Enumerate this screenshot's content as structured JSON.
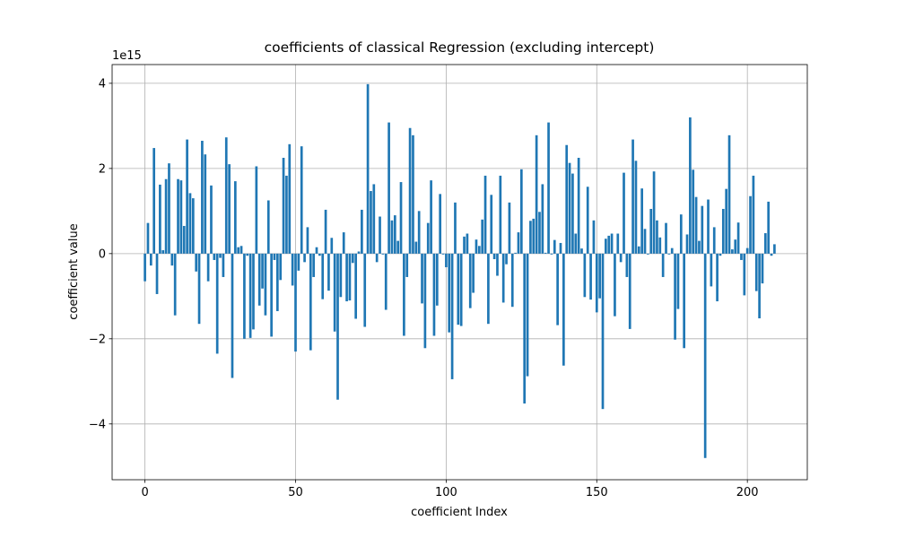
{
  "chart_data": {
    "type": "bar",
    "title": "coefficients of classical Regression (excluding intercept)",
    "x_label": "coefficient Index",
    "y_label": "coefficient value",
    "y_offset_label": "1e15",
    "color": "#1f77b4",
    "grid": true,
    "xlim": [
      -10.9,
      219.9
    ],
    "ylim": [
      -5.31,
      4.44
    ],
    "xticks": [
      0,
      50,
      100,
      150,
      200
    ],
    "yticks": [
      {
        "value": -4,
        "label": "−4"
      },
      {
        "value": -2,
        "label": "−2"
      },
      0,
      2,
      4
    ],
    "x": [
      0,
      1,
      2,
      3,
      4,
      5,
      6,
      7,
      8,
      9,
      10,
      11,
      12,
      13,
      14,
      15,
      16,
      17,
      18,
      19,
      20,
      21,
      22,
      23,
      24,
      25,
      26,
      27,
      28,
      29,
      30,
      31,
      32,
      33,
      34,
      35,
      36,
      37,
      38,
      39,
      40,
      41,
      42,
      43,
      44,
      45,
      46,
      47,
      48,
      49,
      50,
      51,
      52,
      53,
      54,
      55,
      56,
      57,
      58,
      59,
      60,
      61,
      62,
      63,
      64,
      65,
      66,
      67,
      68,
      69,
      70,
      71,
      72,
      73,
      74,
      75,
      76,
      77,
      78,
      79,
      80,
      81,
      82,
      83,
      84,
      85,
      86,
      87,
      88,
      89,
      90,
      91,
      92,
      93,
      94,
      95,
      96,
      97,
      98,
      99,
      100,
      101,
      102,
      103,
      104,
      105,
      106,
      107,
      108,
      109,
      110,
      111,
      112,
      113,
      114,
      115,
      116,
      117,
      118,
      119,
      120,
      121,
      122,
      123,
      124,
      125,
      126,
      127,
      128,
      129,
      130,
      131,
      132,
      133,
      134,
      135,
      136,
      137,
      138,
      139,
      140,
      141,
      142,
      143,
      144,
      145,
      146,
      147,
      148,
      149,
      150,
      151,
      152,
      153,
      154,
      155,
      156,
      157,
      158,
      159,
      160,
      161,
      162,
      163,
      164,
      165,
      166,
      167,
      168,
      169,
      170,
      171,
      172,
      173,
      174,
      175,
      176,
      177,
      178,
      179,
      180,
      181,
      182,
      183,
      184,
      185,
      186,
      187,
      188,
      189,
      190,
      191,
      192,
      193,
      194,
      195,
      196,
      197,
      198,
      199,
      200,
      201,
      202,
      203,
      204,
      205,
      206,
      207,
      208,
      209
    ],
    "values": [
      -0.65,
      0.72,
      -0.28,
      2.48,
      -0.95,
      1.62,
      0.08,
      1.75,
      2.12,
      -0.28,
      -1.45,
      1.75,
      1.72,
      0.65,
      2.68,
      1.42,
      1.3,
      -0.42,
      -1.65,
      2.65,
      2.33,
      -0.65,
      1.6,
      -0.15,
      -2.35,
      -0.1,
      -0.55,
      2.73,
      2.1,
      -2.92,
      1.7,
      0.15,
      0.18,
      -2.0,
      -0.05,
      -1.98,
      -1.78,
      2.05,
      -1.22,
      -0.82,
      -1.45,
      1.25,
      -1.95,
      -0.15,
      -1.35,
      -0.62,
      2.25,
      1.83,
      2.57,
      -0.75,
      -2.3,
      -0.4,
      2.52,
      -0.2,
      0.62,
      -2.27,
      -0.55,
      0.15,
      -0.05,
      -1.07,
      1.03,
      -0.87,
      0.37,
      -1.83,
      -3.43,
      -1.02,
      0.5,
      -1.12,
      -1.1,
      -0.22,
      -1.53,
      0.05,
      1.03,
      -1.72,
      3.98,
      1.47,
      1.63,
      -0.2,
      0.87,
      -0.02,
      -1.32,
      3.08,
      0.78,
      0.9,
      0.3,
      1.68,
      -1.93,
      -0.55,
      2.95,
      2.78,
      0.28,
      1.0,
      -1.17,
      -2.22,
      0.72,
      1.72,
      -1.93,
      -1.22,
      1.4,
      -0.02,
      -0.32,
      -1.85,
      -2.95,
      1.2,
      -1.67,
      -1.7,
      0.4,
      0.47,
      -1.28,
      -0.92,
      0.33,
      0.18,
      0.8,
      1.83,
      -1.65,
      1.38,
      -0.13,
      -0.52,
      1.83,
      -1.15,
      -0.25,
      1.2,
      -1.25,
      0.02,
      0.5,
      1.98,
      -3.52,
      -2.88,
      0.77,
      0.82,
      2.78,
      0.98,
      1.63,
      0.02,
      3.08,
      -0.02,
      0.32,
      -1.68,
      0.25,
      -2.63,
      2.55,
      2.13,
      1.88,
      0.47,
      2.25,
      0.12,
      -1.02,
      1.57,
      -1.08,
      0.78,
      -1.38,
      -1.05,
      -3.65,
      0.35,
      0.42,
      0.47,
      -1.47,
      0.47,
      -0.2,
      1.9,
      -0.55,
      -1.77,
      2.68,
      2.18,
      0.17,
      1.53,
      0.58,
      -0.02,
      1.05,
      1.93,
      0.78,
      0.38,
      -0.55,
      0.72,
      -0.02,
      0.13,
      -2.02,
      -1.3,
      0.92,
      -2.22,
      0.45,
      3.2,
      1.97,
      1.33,
      0.3,
      1.12,
      -4.8,
      1.27,
      -0.77,
      0.62,
      -1.12,
      -0.05,
      1.05,
      1.52,
      2.78,
      0.1,
      0.33,
      0.73,
      -0.15,
      -0.98,
      0.13,
      1.35,
      1.83,
      -0.88,
      -1.52,
      -0.7,
      0.48,
      1.22,
      -0.05,
      0.22
    ]
  }
}
